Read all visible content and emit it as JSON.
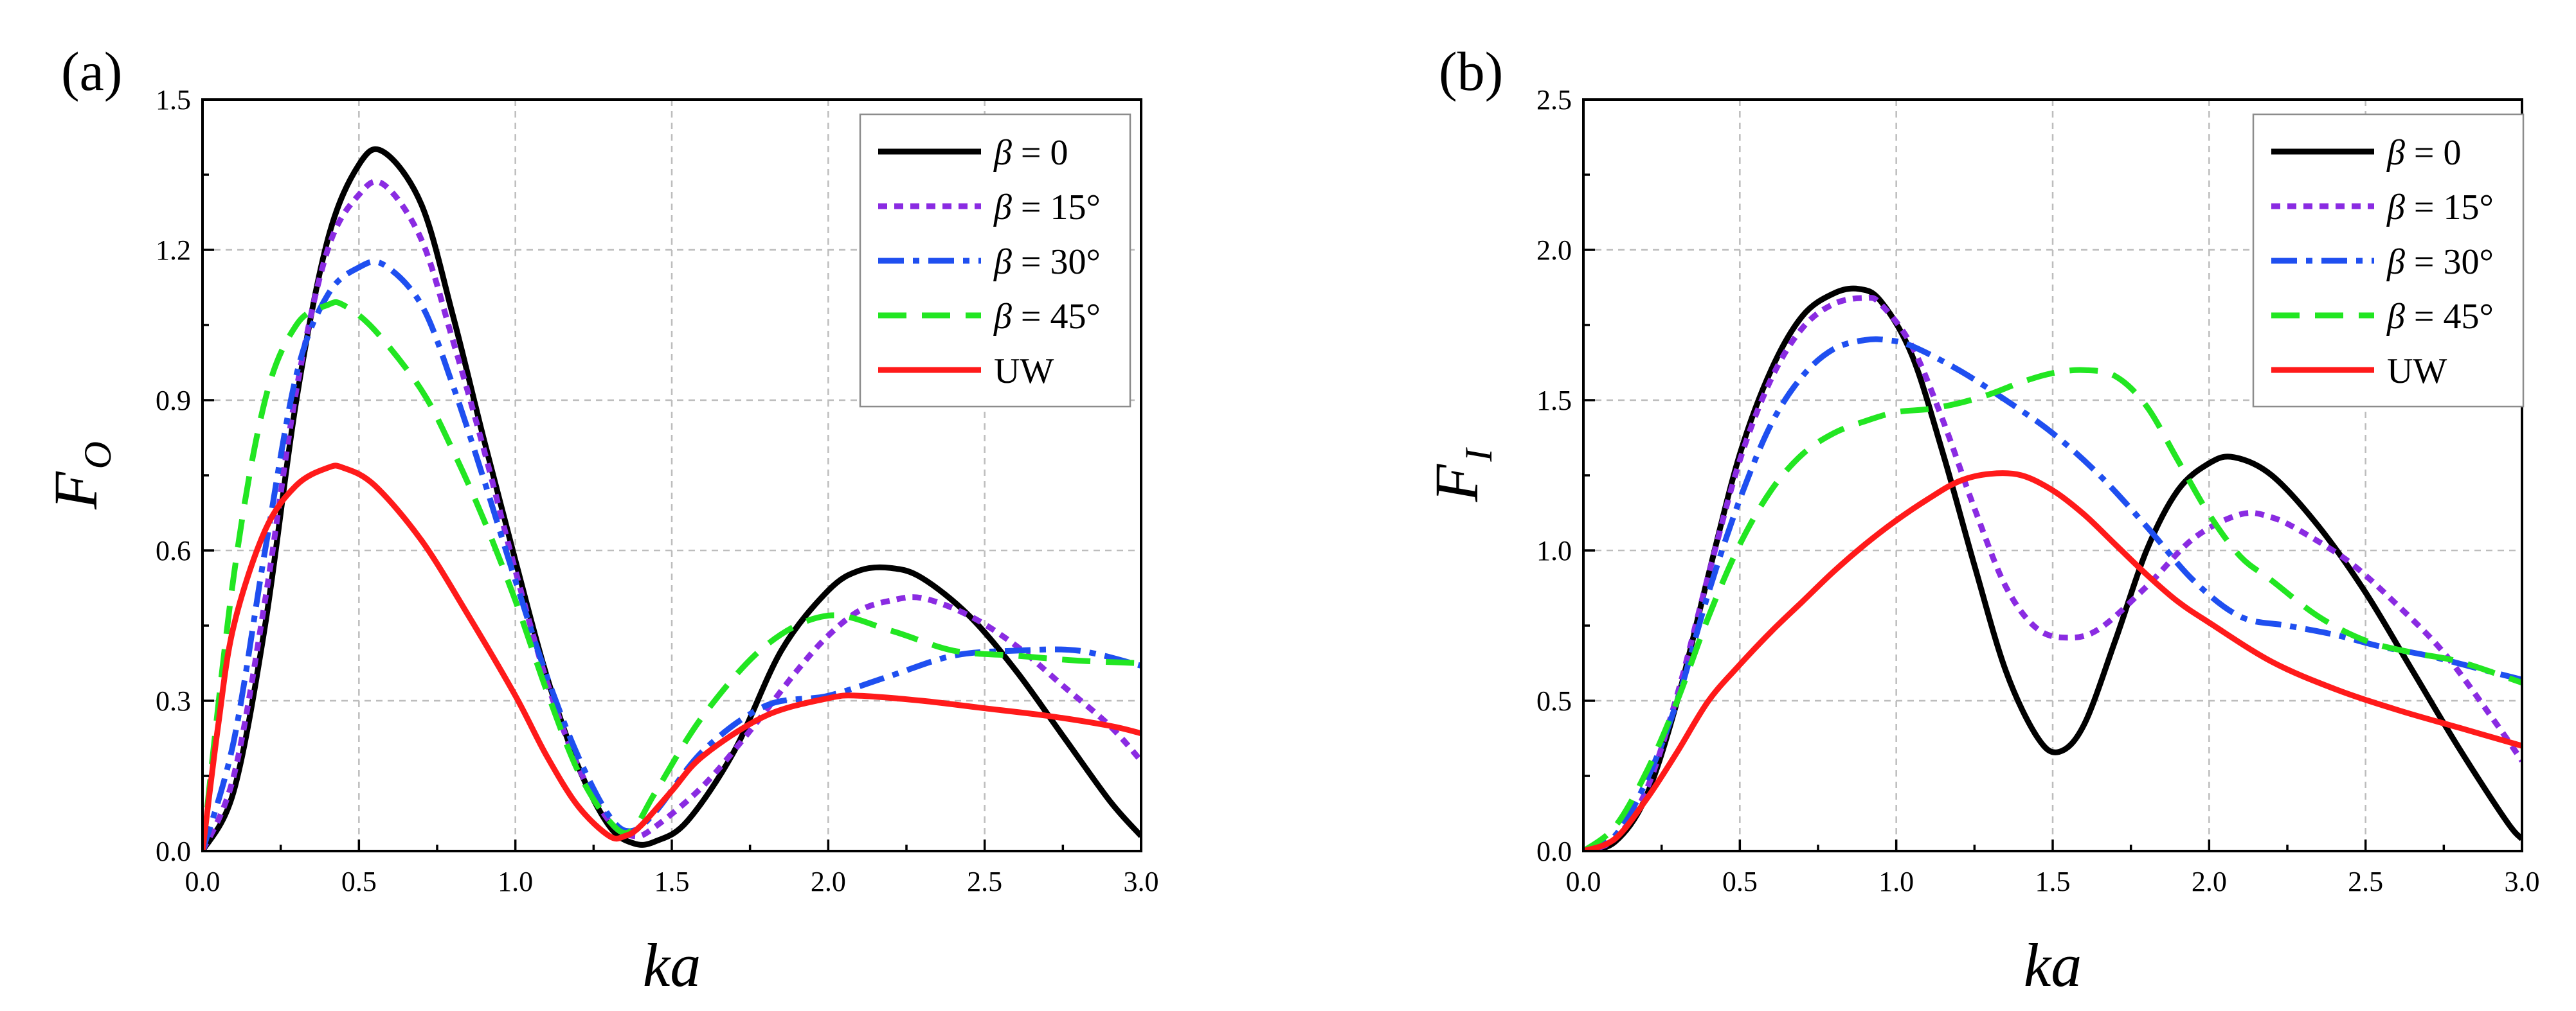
{
  "chart_data": [
    {
      "panel": "(a)",
      "type": "line",
      "xlabel": "ka",
      "ylabel_main": "F",
      "ylabel_sub": "O",
      "xlim": [
        0.0,
        3.0
      ],
      "ylim": [
        0.0,
        1.5
      ],
      "xticks": [
        0.0,
        0.5,
        1.0,
        1.5,
        2.0,
        2.5,
        3.0
      ],
      "xtick_labels": [
        "0.0",
        "0.5",
        "1.0",
        "1.5",
        "2.0",
        "2.5",
        "3.0"
      ],
      "yticks": [
        0.0,
        0.3,
        0.6,
        0.9,
        1.2,
        1.5
      ],
      "ytick_labels": [
        "0.0",
        "0.3",
        "0.6",
        "0.9",
        "1.2",
        "1.5"
      ],
      "grid": true,
      "legend_position": "top-right",
      "series": [
        {
          "name": "β = 0",
          "legend_greek": "β",
          "legend_rest": " = 0",
          "color": "#000000",
          "dash": "solid",
          "x": [
            0.0,
            0.1,
            0.2,
            0.3,
            0.4,
            0.5,
            0.58,
            0.7,
            0.8,
            0.9,
            1.0,
            1.1,
            1.2,
            1.3,
            1.38,
            1.45,
            1.55,
            1.7,
            1.85,
            2.0,
            2.1,
            2.2,
            2.3,
            2.45,
            2.6,
            2.75,
            2.9,
            3.0
          ],
          "y": [
            0.0,
            0.12,
            0.45,
            0.9,
            1.22,
            1.37,
            1.395,
            1.29,
            1.07,
            0.82,
            0.58,
            0.35,
            0.17,
            0.05,
            0.015,
            0.02,
            0.06,
            0.2,
            0.4,
            0.52,
            0.56,
            0.565,
            0.545,
            0.47,
            0.36,
            0.23,
            0.1,
            0.03
          ]
        },
        {
          "name": "β = 15°",
          "legend_greek": "β",
          "legend_rest": " = 15°",
          "color": "#8a2be2",
          "dash": "dot",
          "x": [
            0.0,
            0.1,
            0.2,
            0.3,
            0.4,
            0.5,
            0.58,
            0.7,
            0.8,
            0.9,
            1.0,
            1.1,
            1.2,
            1.3,
            1.38,
            1.45,
            1.6,
            1.75,
            1.9,
            2.0,
            2.1,
            2.2,
            2.3,
            2.45,
            2.6,
            2.75,
            2.9,
            3.0
          ],
          "y": [
            0.0,
            0.15,
            0.5,
            0.92,
            1.2,
            1.31,
            1.33,
            1.22,
            1.02,
            0.8,
            0.56,
            0.34,
            0.17,
            0.06,
            0.03,
            0.05,
            0.13,
            0.24,
            0.36,
            0.43,
            0.48,
            0.5,
            0.505,
            0.47,
            0.41,
            0.33,
            0.25,
            0.18
          ]
        },
        {
          "name": "β = 30°",
          "legend_greek": "β",
          "legend_rest": " = 30°",
          "color": "#1f4ff0",
          "dash": "dashdot",
          "x": [
            0.0,
            0.1,
            0.2,
            0.3,
            0.4,
            0.5,
            0.58,
            0.7,
            0.8,
            0.9,
            1.0,
            1.1,
            1.2,
            1.3,
            1.37,
            1.45,
            1.6,
            1.8,
            2.0,
            2.2,
            2.4,
            2.6,
            2.8,
            3.0
          ],
          "y": [
            0.0,
            0.22,
            0.6,
            0.95,
            1.11,
            1.165,
            1.17,
            1.09,
            0.93,
            0.74,
            0.54,
            0.35,
            0.19,
            0.07,
            0.04,
            0.08,
            0.2,
            0.29,
            0.31,
            0.35,
            0.39,
            0.4,
            0.4,
            0.37
          ]
        },
        {
          "name": "β = 45°",
          "legend_greek": "β",
          "legend_rest": " = 45°",
          "color": "#22e622",
          "dash": "dash",
          "x": [
            0.0,
            0.1,
            0.2,
            0.3,
            0.4,
            0.45,
            0.55,
            0.7,
            0.8,
            0.9,
            1.0,
            1.1,
            1.2,
            1.3,
            1.37,
            1.45,
            1.6,
            1.8,
            2.0,
            2.2,
            2.4,
            2.6,
            2.8,
            3.0
          ],
          "y": [
            0.0,
            0.55,
            0.9,
            1.05,
            1.09,
            1.09,
            1.04,
            0.92,
            0.8,
            0.66,
            0.5,
            0.32,
            0.16,
            0.06,
            0.04,
            0.12,
            0.27,
            0.41,
            0.47,
            0.44,
            0.4,
            0.39,
            0.38,
            0.375
          ]
        },
        {
          "name": "UW",
          "legend_greek": "",
          "legend_rest": "UW",
          "color": "#ff1a1a",
          "dash": "solid",
          "x": [
            0.0,
            0.05,
            0.1,
            0.2,
            0.3,
            0.4,
            0.45,
            0.55,
            0.7,
            0.85,
            1.0,
            1.1,
            1.2,
            1.3,
            1.35,
            1.4,
            1.5,
            1.6,
            1.8,
            2.0,
            2.1,
            2.3,
            2.5,
            2.7,
            2.9,
            3.0
          ],
          "y": [
            0.0,
            0.25,
            0.45,
            0.64,
            0.73,
            0.765,
            0.765,
            0.73,
            0.62,
            0.47,
            0.31,
            0.19,
            0.09,
            0.03,
            0.03,
            0.05,
            0.12,
            0.19,
            0.27,
            0.305,
            0.31,
            0.3,
            0.285,
            0.27,
            0.25,
            0.235
          ]
        }
      ]
    },
    {
      "panel": "(b)",
      "type": "line",
      "xlabel": "ka",
      "ylabel_main": "F",
      "ylabel_sub": "I",
      "xlim": [
        0.0,
        3.0
      ],
      "ylim": [
        0.0,
        2.5
      ],
      "xticks": [
        0.0,
        0.5,
        1.0,
        1.5,
        2.0,
        2.5,
        3.0
      ],
      "xtick_labels": [
        "0.0",
        "0.5",
        "1.0",
        "1.5",
        "2.0",
        "2.5",
        "3.0"
      ],
      "yticks": [
        0.0,
        0.5,
        1.0,
        1.5,
        2.0,
        2.5
      ],
      "ytick_labels": [
        "0.0",
        "0.5",
        "1.0",
        "1.5",
        "2.0",
        "2.5"
      ],
      "grid": true,
      "legend_position": "top-right",
      "series": [
        {
          "name": "β = 0",
          "legend_greek": "β",
          "legend_rest": " = 0",
          "color": "#000000",
          "dash": "solid",
          "x": [
            0.0,
            0.1,
            0.2,
            0.3,
            0.4,
            0.5,
            0.6,
            0.7,
            0.8,
            0.88,
            0.95,
            1.05,
            1.15,
            1.25,
            1.35,
            1.45,
            1.52,
            1.6,
            1.7,
            1.8,
            1.9,
            2.0,
            2.08,
            2.2,
            2.35,
            2.5,
            2.65,
            2.8,
            2.95,
            3.0
          ],
          "y": [
            0.0,
            0.03,
            0.18,
            0.5,
            0.92,
            1.32,
            1.6,
            1.78,
            1.855,
            1.87,
            1.83,
            1.65,
            1.32,
            0.95,
            0.6,
            0.38,
            0.33,
            0.42,
            0.7,
            1.0,
            1.2,
            1.29,
            1.31,
            1.25,
            1.08,
            0.86,
            0.6,
            0.34,
            0.1,
            0.04
          ]
        },
        {
          "name": "β = 15°",
          "legend_greek": "β",
          "legend_rest": " = 15°",
          "color": "#8a2be2",
          "dash": "dot",
          "x": [
            0.0,
            0.1,
            0.2,
            0.3,
            0.4,
            0.5,
            0.6,
            0.7,
            0.8,
            0.9,
            0.95,
            1.05,
            1.15,
            1.25,
            1.35,
            1.45,
            1.55,
            1.65,
            1.8,
            1.95,
            2.1,
            2.2,
            2.3,
            2.45,
            2.6,
            2.75,
            2.9,
            3.0
          ],
          "y": [
            0.0,
            0.04,
            0.2,
            0.52,
            0.92,
            1.3,
            1.57,
            1.74,
            1.82,
            1.84,
            1.82,
            1.68,
            1.43,
            1.14,
            0.88,
            0.74,
            0.71,
            0.74,
            0.88,
            1.04,
            1.12,
            1.11,
            1.06,
            0.96,
            0.82,
            0.66,
            0.45,
            0.3
          ]
        },
        {
          "name": "β = 30°",
          "legend_greek": "β",
          "legend_rest": " = 30°",
          "color": "#1f4ff0",
          "dash": "dashdot",
          "x": [
            0.0,
            0.1,
            0.2,
            0.3,
            0.4,
            0.5,
            0.6,
            0.7,
            0.8,
            0.9,
            0.97,
            1.05,
            1.2,
            1.35,
            1.5,
            1.65,
            1.8,
            1.95,
            2.1,
            2.25,
            2.4,
            2.55,
            2.7,
            2.85,
            3.0
          ],
          "y": [
            0.0,
            0.05,
            0.23,
            0.5,
            0.86,
            1.17,
            1.42,
            1.58,
            1.67,
            1.7,
            1.7,
            1.68,
            1.6,
            1.5,
            1.39,
            1.25,
            1.08,
            0.9,
            0.78,
            0.75,
            0.72,
            0.68,
            0.65,
            0.61,
            0.57
          ]
        },
        {
          "name": "β = 45°",
          "legend_greek": "β",
          "legend_rest": " = 45°",
          "color": "#22e622",
          "dash": "dash",
          "x": [
            0.0,
            0.1,
            0.2,
            0.3,
            0.4,
            0.5,
            0.6,
            0.7,
            0.8,
            0.9,
            1.0,
            1.1,
            1.2,
            1.3,
            1.4,
            1.5,
            1.6,
            1.7,
            1.8,
            1.9,
            2.0,
            2.1,
            2.2,
            2.35,
            2.5,
            2.65,
            2.8,
            3.0
          ],
          "y": [
            0.0,
            0.08,
            0.26,
            0.5,
            0.78,
            1.02,
            1.2,
            1.32,
            1.39,
            1.43,
            1.46,
            1.47,
            1.49,
            1.52,
            1.56,
            1.59,
            1.6,
            1.58,
            1.48,
            1.3,
            1.12,
            0.98,
            0.9,
            0.78,
            0.7,
            0.66,
            0.63,
            0.56
          ]
        },
        {
          "name": "UW",
          "legend_greek": "",
          "legend_rest": "UW",
          "color": "#ff1a1a",
          "dash": "solid",
          "x": [
            0.0,
            0.1,
            0.2,
            0.3,
            0.4,
            0.5,
            0.6,
            0.7,
            0.8,
            0.9,
            1.0,
            1.1,
            1.2,
            1.3,
            1.4,
            1.5,
            1.6,
            1.7,
            1.8,
            1.9,
            2.0,
            2.2,
            2.4,
            2.6,
            2.8,
            3.0
          ],
          "y": [
            0.0,
            0.04,
            0.17,
            0.33,
            0.5,
            0.62,
            0.73,
            0.83,
            0.93,
            1.02,
            1.1,
            1.17,
            1.23,
            1.255,
            1.25,
            1.2,
            1.12,
            1.02,
            0.92,
            0.83,
            0.76,
            0.63,
            0.54,
            0.47,
            0.41,
            0.35
          ]
        }
      ]
    }
  ]
}
